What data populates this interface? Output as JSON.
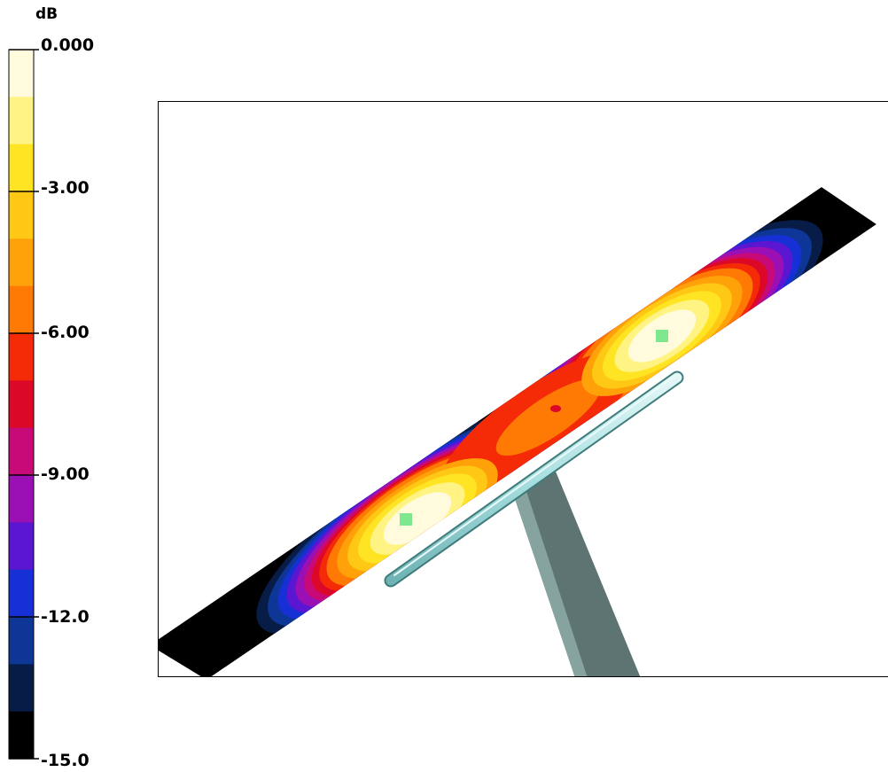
{
  "legend": {
    "unit": "dB",
    "ticks": [
      {
        "label": "0.000",
        "value": 0
      },
      {
        "label": "-3.00",
        "value": -3
      },
      {
        "label": "-6.00",
        "value": -6
      },
      {
        "label": "-9.00",
        "value": -9
      },
      {
        "label": "-12.0",
        "value": -12
      },
      {
        "label": "-15.0",
        "value": -15
      }
    ],
    "bands": [
      {
        "from": -1,
        "to": 0,
        "color": "#fffbdc"
      },
      {
        "from": -2,
        "to": -1,
        "color": "#fff483"
      },
      {
        "from": -3,
        "to": -2,
        "color": "#ffe424"
      },
      {
        "from": -4,
        "to": -3,
        "color": "#ffc814"
      },
      {
        "from": -5,
        "to": -4,
        "color": "#ffa20a"
      },
      {
        "from": -6,
        "to": -5,
        "color": "#ff7a05"
      },
      {
        "from": -7,
        "to": -6,
        "color": "#f52a06"
      },
      {
        "from": -8,
        "to": -7,
        "color": "#dc0828"
      },
      {
        "from": -9,
        "to": -8,
        "color": "#c70a78"
      },
      {
        "from": -10,
        "to": -9,
        "color": "#9a10b4"
      },
      {
        "from": -11,
        "to": -10,
        "color": "#5b16d2"
      },
      {
        "from": -12,
        "to": -11,
        "color": "#1630d6"
      },
      {
        "from": -13,
        "to": -12,
        "color": "#0e3696"
      },
      {
        "from": -14,
        "to": -13,
        "color": "#081c48"
      },
      {
        "from": -15,
        "to": -14,
        "color": "#000000"
      }
    ]
  },
  "scene": {
    "band_colors": [
      "#fffbdc",
      "#fff483",
      "#ffe424",
      "#ffc814",
      "#ffa20a",
      "#ff7a05",
      "#f52a06",
      "#dc0828",
      "#c70a78",
      "#9a10b4",
      "#5b16d2",
      "#1630d6",
      "#0e3696",
      "#081c48",
      "#000000"
    ],
    "speaker_marker_color": "#7ee88e",
    "bar_color": "#a9dfe0",
    "pole_color": "#5e7472"
  }
}
